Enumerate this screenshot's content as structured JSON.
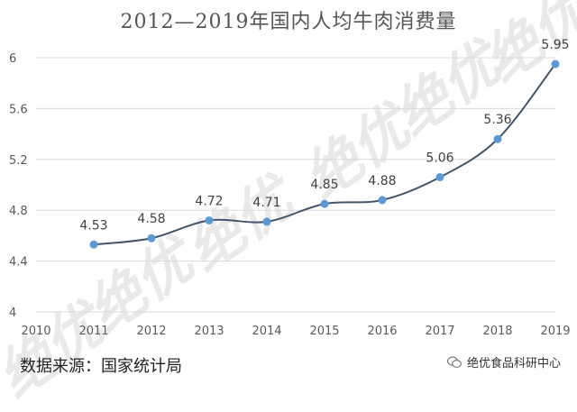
{
  "chart_data": {
    "type": "line",
    "title": "2012—2019年国内人均牛肉消费量",
    "xlabel": "",
    "ylabel": "",
    "x_ticks": [
      "2010",
      "2011",
      "2012",
      "2013",
      "2014",
      "2015",
      "2016",
      "2017",
      "2018",
      "2019"
    ],
    "xlim": [
      2010,
      2019
    ],
    "y_ticks": [
      "4",
      "4.4",
      "4.8",
      "5.2",
      "5.6",
      "6"
    ],
    "ylim": [
      4,
      6
    ],
    "grid": true,
    "smooth": true,
    "series": [
      {
        "color": "#5b9bd5",
        "line_color": "#44546a",
        "points": [
          {
            "x": 2011,
            "y": 4.53,
            "label": "4.53"
          },
          {
            "x": 2012,
            "y": 4.58,
            "label": "4.58"
          },
          {
            "x": 2013,
            "y": 4.72,
            "label": "4.72"
          },
          {
            "x": 2014,
            "y": 4.71,
            "label": "4.71"
          },
          {
            "x": 2015,
            "y": 4.85,
            "label": "4.85"
          },
          {
            "x": 2016,
            "y": 4.88,
            "label": "4.88"
          },
          {
            "x": 2017,
            "y": 5.06,
            "label": "5.06"
          },
          {
            "x": 2018,
            "y": 5.36,
            "label": "5.36"
          },
          {
            "x": 2019,
            "y": 5.95,
            "label": "5.95"
          }
        ]
      }
    ]
  },
  "source_note": "数据来源：国家统计局",
  "brand_name": "绝优食品科研中心",
  "watermark_text": "绝优"
}
